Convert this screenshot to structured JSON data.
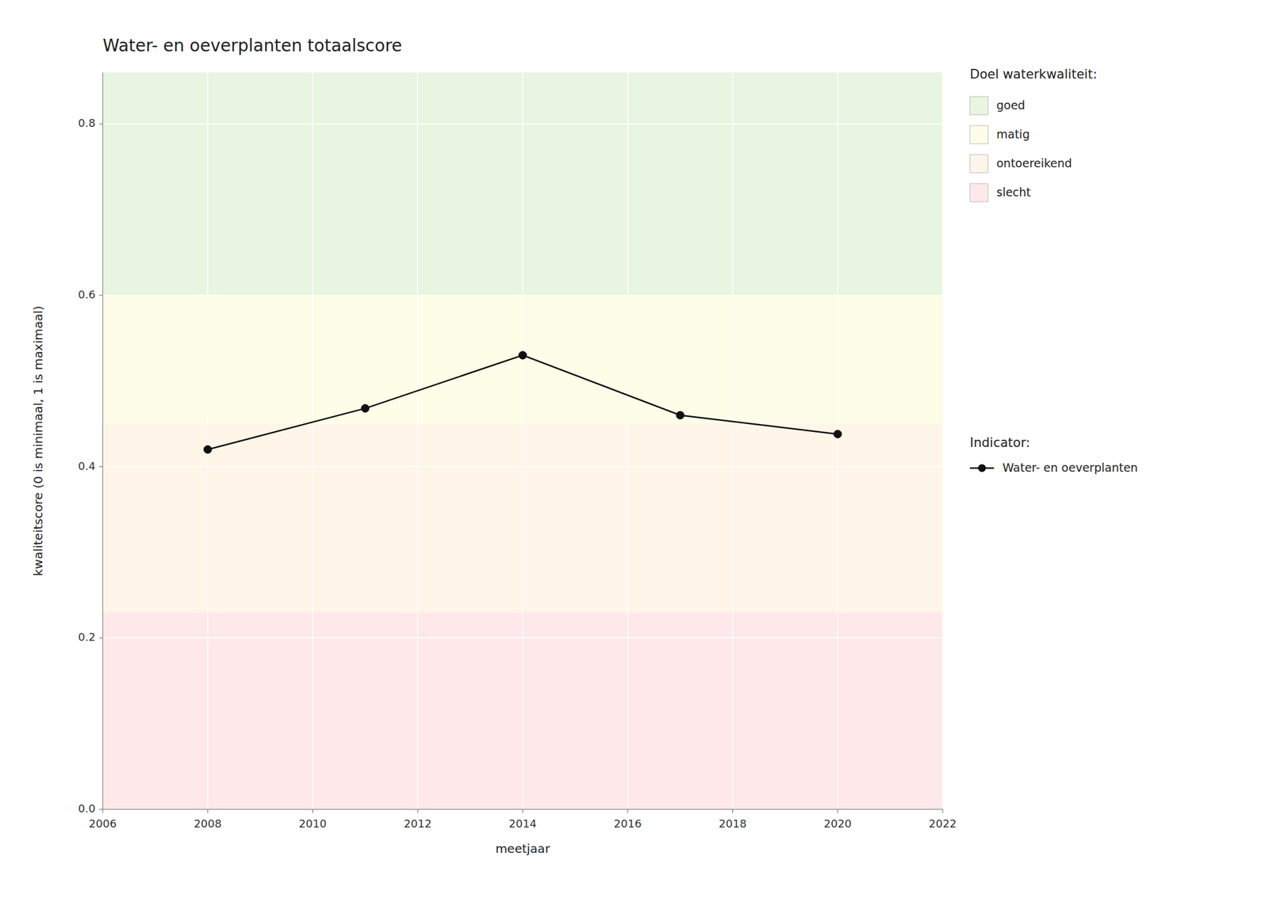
{
  "chart_data": {
    "type": "line",
    "title": "Water- en oeverplanten totaalscore",
    "x_label": "meetjaar",
    "y_label": "kwaliteitscore (0 is minimaal, 1 is maximaal)",
    "x": [
      2008,
      2011,
      2014,
      2017,
      2020
    ],
    "series": [
      {
        "name": "Water- en oeverplanten",
        "color": "#111111",
        "marker": "circle",
        "line_style": "solid",
        "values": [
          0.42,
          0.468,
          0.53,
          0.46,
          0.438
        ]
      }
    ],
    "xlim": [
      2006,
      2022
    ],
    "ylim": [
      0.0,
      0.86
    ],
    "xticks": [
      2006,
      2008,
      2010,
      2012,
      2014,
      2016,
      2018,
      2020,
      2022
    ],
    "yticks": [
      {
        "value": 0.0,
        "label": "0.0"
      },
      0.2,
      0.4,
      0.6,
      0.8
    ],
    "grid": true,
    "legend": "right",
    "band_legend_title": "Doel waterkwaliteit:",
    "series_legend_title": "Indicator:",
    "bands": [
      {
        "label": "goed",
        "from": 0.6,
        "to": 0.86,
        "color": "#E8F5E0"
      },
      {
        "label": "matig",
        "from": 0.45,
        "to": 0.6,
        "color": "#FDFDE8"
      },
      {
        "label": "ontoereikend",
        "from": 0.23,
        "to": 0.45,
        "color": "#FFF5E8"
      },
      {
        "label": "slecht",
        "from": 0.0,
        "to": 0.23,
        "color": "#FFE8EA"
      }
    ]
  }
}
